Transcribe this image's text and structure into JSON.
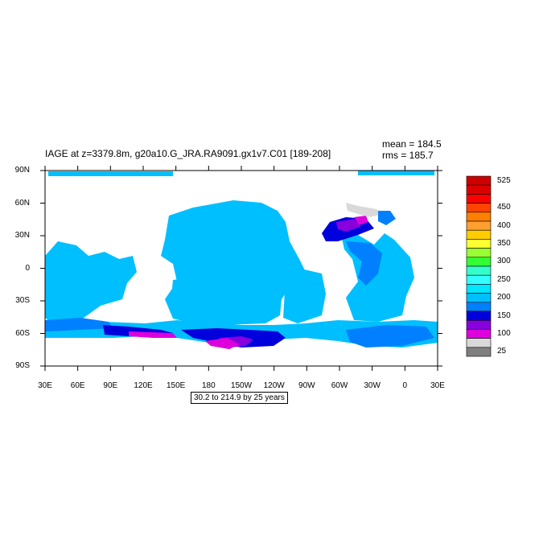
{
  "title": "IAGE at z=3379.8m, g20a10.G_JRA.RA9091.gx1v7.C01 [189-208]",
  "stats": {
    "mean": "mean = 184.5",
    "rms": "rms = 185.7"
  },
  "axes": {
    "lat_ticks": [
      {
        "label": "90N",
        "value": 90
      },
      {
        "label": "60N",
        "value": 60
      },
      {
        "label": "30N",
        "value": 30
      },
      {
        "label": "0",
        "value": 0
      },
      {
        "label": "30S",
        "value": -30
      },
      {
        "label": "60S",
        "value": -60
      },
      {
        "label": "90S",
        "value": -90
      }
    ],
    "lon_ticks": [
      {
        "label": "30E",
        "value": 30
      },
      {
        "label": "60E",
        "value": 60
      },
      {
        "label": "90E",
        "value": 90
      },
      {
        "label": "120E",
        "value": 120
      },
      {
        "label": "150E",
        "value": 150
      },
      {
        "label": "180",
        "value": 180
      },
      {
        "label": "150W",
        "value": 210
      },
      {
        "label": "120W",
        "value": 240
      },
      {
        "label": "90W",
        "value": 270
      },
      {
        "label": "60W",
        "value": 300
      },
      {
        "label": "30W",
        "value": 330
      },
      {
        "label": "0",
        "value": 360
      },
      {
        "label": "30E",
        "value": 390
      }
    ],
    "lon_range": [
      30,
      390
    ],
    "lat_range": [
      -90,
      90
    ]
  },
  "colorbar": {
    "labels": [
      {
        "text": "525",
        "index": 0
      },
      {
        "text": "450",
        "index": 3
      },
      {
        "text": "400",
        "index": 5
      },
      {
        "text": "350",
        "index": 7
      },
      {
        "text": "300",
        "index": 9
      },
      {
        "text": "250",
        "index": 11
      },
      {
        "text": "200",
        "index": 13
      },
      {
        "text": "150",
        "index": 15
      },
      {
        "text": "100",
        "index": 17
      },
      {
        "text": "25",
        "index": 19
      }
    ],
    "colors": [
      "#cc0000",
      "#dd0000",
      "#ff0000",
      "#ff4400",
      "#ff7f00",
      "#ff9f30",
      "#ffcc00",
      "#ffff33",
      "#99ff33",
      "#33ff33",
      "#33ffcc",
      "#33ffff",
      "#00e5ff",
      "#00bfff",
      "#0080ff",
      "#0000dd",
      "#8800dd",
      "#dd00dd",
      "#d9d9d9",
      "#7f7f7f"
    ]
  },
  "range_note": "30.2 to 214.9 by 25 years",
  "map_colors": {
    "ocean": "#00bfff",
    "deep_blue": "#0000dd",
    "mid_blue": "#0080ff",
    "purple": "#8800dd",
    "magenta": "#dd00dd",
    "grey": "#d9d9d9",
    "land": "#ffffff"
  }
}
